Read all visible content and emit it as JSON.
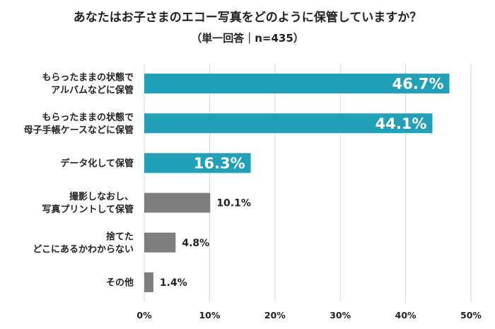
{
  "chart_data": {
    "type": "bar",
    "orientation": "horizontal",
    "title": "あなたはお子さまのエコー写真をどのように保管していますか？",
    "subtitle": "（単一回答｜n=435）",
    "categories": [
      [
        "もらったままの状態で",
        "アルバムなどに保管"
      ],
      [
        "もらったままの状態で",
        "母子手帳ケースなどに保管"
      ],
      [
        "データ化して保管"
      ],
      [
        "撮影しなおし、",
        "写真プリントして保管"
      ],
      [
        "捨てた",
        "どこにあるかわからない"
      ],
      [
        "その他"
      ]
    ],
    "values": [
      46.7,
      44.1,
      16.3,
      10.1,
      4.8,
      1.4
    ],
    "data_labels": [
      "46.7%",
      "44.1%",
      "16.3%",
      "10.1%",
      "4.8%",
      "1.4%"
    ],
    "bar_colors": [
      "#21a0b8",
      "#21a0b8",
      "#21a0b8",
      "#7f7f7f",
      "#7f7f7f",
      "#7f7f7f"
    ],
    "xlim": [
      0,
      50
    ],
    "xticks": [
      0,
      10,
      20,
      30,
      40,
      50
    ],
    "xtick_labels": [
      "0%",
      "10%",
      "20%",
      "30%",
      "40%",
      "50%"
    ],
    "grid": true,
    "gridline_color": "#d9d9d9"
  }
}
